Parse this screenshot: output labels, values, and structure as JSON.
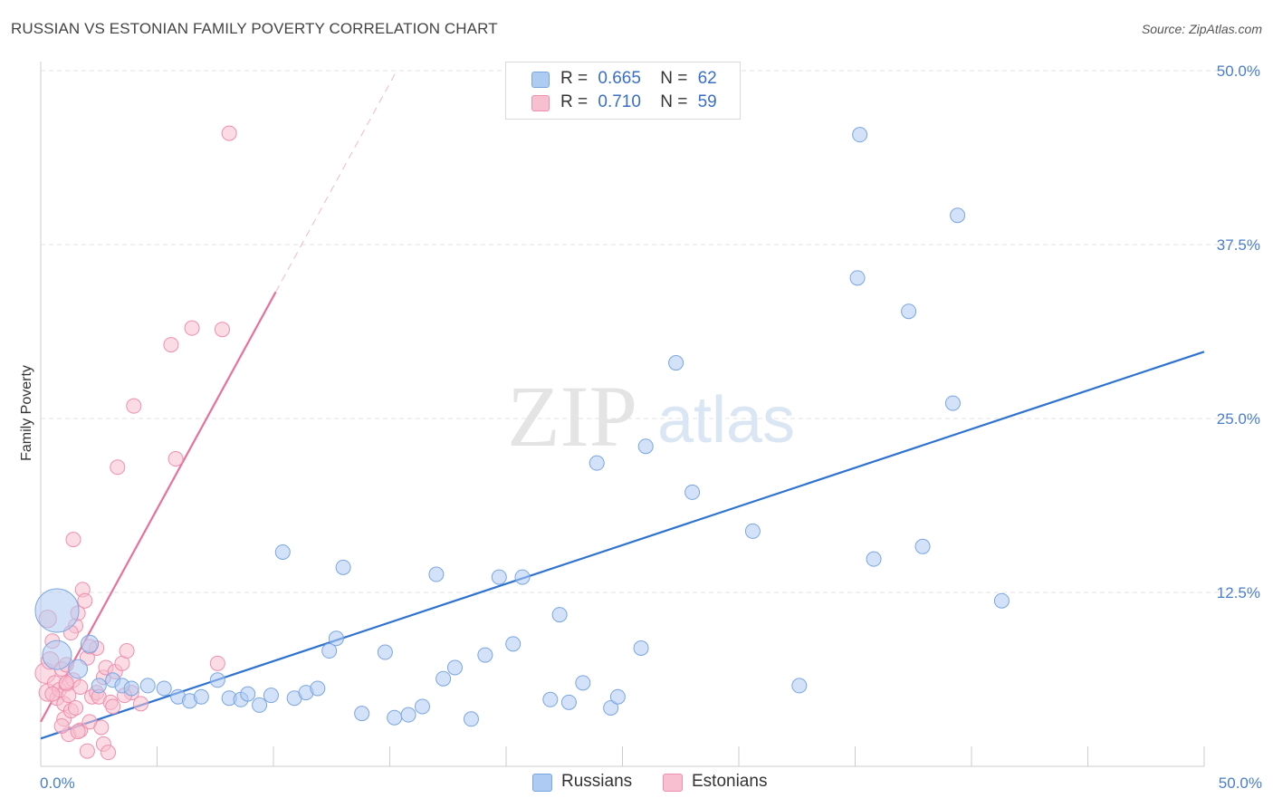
{
  "header": {
    "title": "RUSSIAN VS ESTONIAN FAMILY POVERTY CORRELATION CHART",
    "source": "Source: ZipAtlas.com"
  },
  "legend": {
    "r_label": "R =",
    "n_label": "N =",
    "rows": [
      {
        "r": "0.665",
        "n": "62"
      },
      {
        "r": "0.710",
        "n": "59"
      }
    ]
  },
  "watermark": {
    "zip": "ZIP",
    "atlas": "atlas"
  },
  "colors": {
    "russians_fill": "#aecbf2",
    "russians_stroke": "#7aa6e0",
    "russians_line": "#2f73d1",
    "estonians_fill": "#f8bfd0",
    "estonians_stroke": "#ee8fae",
    "estonians_line": "#e8709a",
    "tick_text": "#4a7ecb"
  },
  "chart_data": {
    "type": "scatter",
    "title": "RUSSIAN VS ESTONIAN FAMILY POVERTY CORRELATION CHART",
    "xlabel": "",
    "ylabel": "Family Poverty",
    "xlim": [
      0,
      50
    ],
    "ylim": [
      0,
      50
    ],
    "x_tick_labels": [
      "0.0%",
      "50.0%"
    ],
    "y_ticks": [
      12.5,
      25.0,
      37.5,
      50.0
    ],
    "y_tick_labels": [
      "12.5%",
      "25.0%",
      "37.5%",
      "50.0%"
    ],
    "grid": true,
    "series": [
      {
        "name": "Russians",
        "r": 0.665,
        "n": 62,
        "trend": {
          "x0": 0,
          "y0": 2.0,
          "x1": 50,
          "y1": 29.8,
          "solid_to": 50
        },
        "points": [
          [
            0.7,
            11.2,
            3
          ],
          [
            0.7,
            8.0,
            2
          ],
          [
            1.6,
            7.0,
            1.3
          ],
          [
            2.1,
            8.8,
            1.2
          ],
          [
            2.5,
            5.8,
            1
          ],
          [
            3.1,
            6.2,
            1
          ],
          [
            3.5,
            5.8,
            1
          ],
          [
            3.9,
            5.6,
            1
          ],
          [
            4.6,
            5.8,
            1
          ],
          [
            5.3,
            5.6,
            1
          ],
          [
            5.9,
            5.0,
            1
          ],
          [
            6.4,
            4.7,
            1
          ],
          [
            6.9,
            5.0,
            1
          ],
          [
            7.6,
            6.2,
            1
          ],
          [
            8.1,
            4.9,
            1
          ],
          [
            8.6,
            4.8,
            1
          ],
          [
            8.9,
            5.2,
            1
          ],
          [
            9.4,
            4.4,
            1
          ],
          [
            9.9,
            5.1,
            1
          ],
          [
            10.4,
            15.4,
            1
          ],
          [
            10.9,
            4.9,
            1
          ],
          [
            11.4,
            5.3,
            1
          ],
          [
            11.9,
            5.6,
            1
          ],
          [
            12.4,
            8.3,
            1
          ],
          [
            12.7,
            9.2,
            1
          ],
          [
            13.0,
            14.3,
            1
          ],
          [
            13.8,
            3.8,
            1
          ],
          [
            14.8,
            8.2,
            1
          ],
          [
            15.2,
            3.5,
            1
          ],
          [
            15.8,
            3.7,
            1
          ],
          [
            16.4,
            4.3,
            1
          ],
          [
            17.0,
            13.8,
            1
          ],
          [
            17.3,
            6.3,
            1
          ],
          [
            17.8,
            7.1,
            1
          ],
          [
            18.5,
            3.4,
            1
          ],
          [
            19.1,
            8.0,
            1
          ],
          [
            19.7,
            13.6,
            1
          ],
          [
            20.3,
            8.8,
            1
          ],
          [
            20.7,
            13.6,
            1
          ],
          [
            21.9,
            4.8,
            1
          ],
          [
            22.3,
            10.9,
            1
          ],
          [
            22.7,
            4.6,
            1
          ],
          [
            23.3,
            6.0,
            1
          ],
          [
            23.9,
            21.8,
            1
          ],
          [
            24.5,
            4.2,
            1
          ],
          [
            24.8,
            5.0,
            1
          ],
          [
            25.8,
            8.5,
            1
          ],
          [
            26.0,
            23.0,
            1
          ],
          [
            27.3,
            29.0,
            1
          ],
          [
            28.0,
            19.7,
            1
          ],
          [
            30.6,
            16.9,
            1
          ],
          [
            32.6,
            5.8,
            1
          ],
          [
            35.2,
            45.4,
            1
          ],
          [
            35.1,
            35.1,
            1
          ],
          [
            35.8,
            14.9,
            1
          ],
          [
            37.3,
            32.7,
            1
          ],
          [
            37.9,
            15.8,
            1
          ],
          [
            39.2,
            26.1,
            1
          ],
          [
            39.4,
            39.6,
            1
          ],
          [
            41.3,
            11.9,
            1
          ]
        ]
      },
      {
        "name": "Estonians",
        "r": 0.71,
        "n": 59,
        "trend": {
          "x0": 0,
          "y0": 3.2,
          "x1": 15.3,
          "y1": 50,
          "solid_to": 10.1
        },
        "points": [
          [
            0.2,
            6.7,
            1.4
          ],
          [
            0.3,
            5.3,
            1.2
          ],
          [
            0.3,
            10.6,
            1.2
          ],
          [
            0.4,
            7.6,
            1.2
          ],
          [
            0.5,
            9.0,
            1
          ],
          [
            0.6,
            6.0,
            1
          ],
          [
            0.7,
            4.9,
            1
          ],
          [
            0.8,
            5.5,
            1
          ],
          [
            0.9,
            7.0,
            1
          ],
          [
            1.0,
            3.4,
            1
          ],
          [
            1.0,
            4.5,
            1
          ],
          [
            1.1,
            5.9,
            1
          ],
          [
            1.1,
            7.3,
            1
          ],
          [
            1.2,
            2.3,
            1
          ],
          [
            1.2,
            5.1,
            1
          ],
          [
            1.3,
            4.0,
            1
          ],
          [
            1.4,
            6.2,
            1
          ],
          [
            1.4,
            16.3,
            1
          ],
          [
            1.5,
            4.2,
            1
          ],
          [
            1.5,
            10.1,
            1
          ],
          [
            1.6,
            11.0,
            1
          ],
          [
            1.7,
            2.6,
            1
          ],
          [
            1.7,
            5.7,
            1
          ],
          [
            1.8,
            12.7,
            1
          ],
          [
            1.9,
            11.9,
            1
          ],
          [
            2.0,
            7.8,
            1
          ],
          [
            2.1,
            3.2,
            1
          ],
          [
            2.2,
            5.0,
            1
          ],
          [
            2.4,
            8.5,
            1
          ],
          [
            2.4,
            5.3,
            1
          ],
          [
            2.5,
            5.0,
            1
          ],
          [
            2.6,
            2.8,
            1
          ],
          [
            2.7,
            1.6,
            1
          ],
          [
            2.7,
            6.4,
            1
          ],
          [
            2.8,
            7.1,
            1
          ],
          [
            2.9,
            1.0,
            1
          ],
          [
            3.0,
            4.6,
            1
          ],
          [
            3.1,
            4.3,
            1
          ],
          [
            3.2,
            6.8,
            1
          ],
          [
            3.3,
            21.5,
            1
          ],
          [
            3.5,
            7.4,
            1
          ],
          [
            3.7,
            8.3,
            1
          ],
          [
            3.9,
            5.3,
            1
          ],
          [
            4.0,
            25.9,
            1
          ],
          [
            4.3,
            4.5,
            1
          ],
          [
            5.6,
            30.3,
            1
          ],
          [
            5.8,
            22.1,
            1
          ],
          [
            6.5,
            31.5,
            1
          ],
          [
            7.6,
            7.4,
            1
          ],
          [
            7.8,
            31.4,
            1
          ],
          [
            8.1,
            45.5,
            1
          ],
          [
            1.6,
            2.5,
            1
          ],
          [
            2.1,
            8.6,
            1
          ],
          [
            0.9,
            2.9,
            1
          ],
          [
            2.0,
            1.1,
            1
          ],
          [
            1.3,
            9.6,
            1
          ],
          [
            3.6,
            5.1,
            1
          ],
          [
            0.5,
            5.2,
            1
          ],
          [
            1.1,
            6.0,
            1
          ]
        ]
      }
    ]
  }
}
